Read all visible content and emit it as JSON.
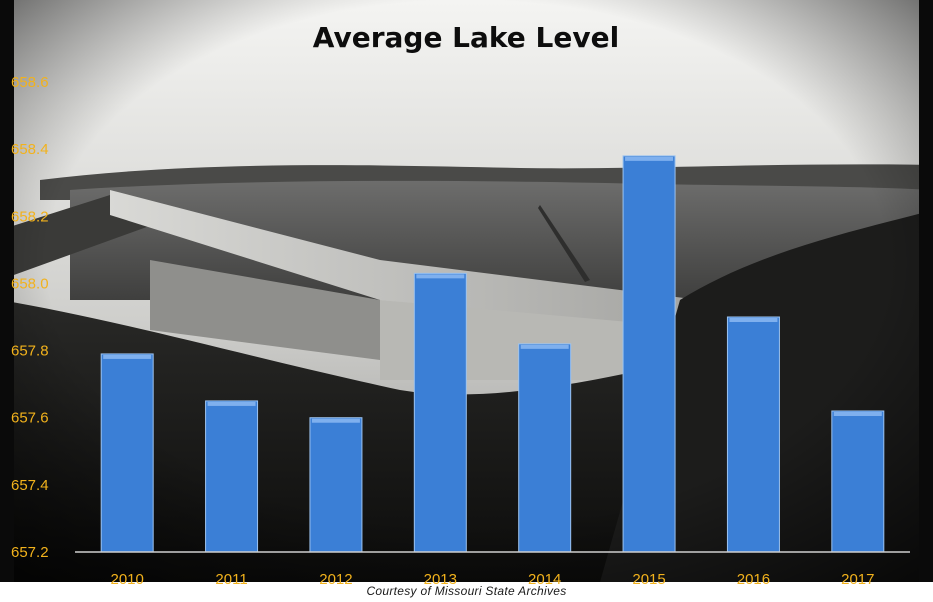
{
  "chart_data": {
    "type": "bar",
    "title": "Average Lake Level",
    "xlabel": "",
    "ylabel": "",
    "categories": [
      "2010",
      "2011",
      "2012",
      "2013",
      "2014",
      "2015",
      "2016",
      "2017"
    ],
    "values": [
      657.79,
      657.65,
      657.6,
      658.03,
      657.82,
      658.38,
      657.9,
      657.62
    ],
    "ylim": [
      657.2,
      658.6
    ],
    "yticks": [
      "657.2",
      "657.4",
      "657.6",
      "657.8",
      "658.0",
      "658.2",
      "658.4",
      "658.6"
    ],
    "grid": false,
    "legend": "none",
    "bar_color": "#3b7fd6",
    "tick_color": "#f2b21c"
  },
  "credit": "Courtesy of Missouri State Archives",
  "background_image": "dam-and-lake-photo"
}
